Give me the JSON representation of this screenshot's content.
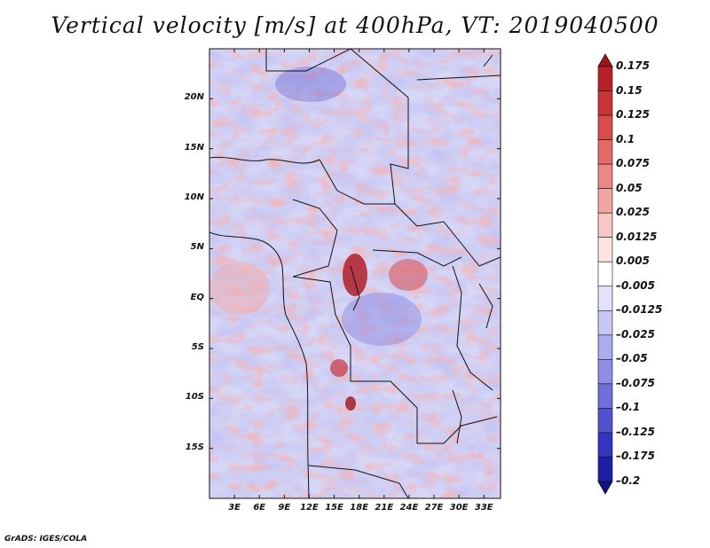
{
  "title": "Vertical velocity [m/s] at 400hPa, VT: 2019040500",
  "credit": "GrADS: IGES/COLA",
  "map": {
    "variable": "Vertical velocity",
    "units": "m/s",
    "level": "400hPa",
    "valid_time": "2019040500",
    "lon_range": [
      0,
      35
    ],
    "lat_range": [
      -20,
      25
    ],
    "x_ticks": [
      "3E",
      "6E",
      "9E",
      "12E",
      "15E",
      "18E",
      "21E",
      "24E",
      "27E",
      "30E",
      "33E"
    ],
    "x_tick_values": [
      3,
      6,
      9,
      12,
      15,
      18,
      21,
      24,
      27,
      30,
      33
    ],
    "y_ticks": [
      "20N",
      "15N",
      "10N",
      "5N",
      "EQ",
      "5S",
      "10S",
      "15S"
    ],
    "y_tick_values": [
      20,
      15,
      10,
      5,
      0,
      -5,
      -10,
      -15
    ]
  },
  "colorbar": {
    "labels": [
      "0.175",
      "0.15",
      "0.125",
      "0.1",
      "0.075",
      "0.05",
      "0.025",
      "0.0125",
      "0.005",
      "–0.005",
      "–0.0125",
      "–0.025",
      "–0.05",
      "–0.075",
      "–0.1",
      "–0.125",
      "–0.175",
      "–0.2"
    ],
    "colors": [
      "#a0141c",
      "#b8202a",
      "#c9343a",
      "#d84c4e",
      "#e36a69",
      "#eb8886",
      "#f2a6a4",
      "#f8c6c4",
      "#fde4e3",
      "#ffffff",
      "#e2e2fb",
      "#c8c8f5",
      "#ababee",
      "#8e8ee6",
      "#7070dc",
      "#5252cf",
      "#3434bf",
      "#1e1ea8",
      "#10108c"
    ]
  }
}
